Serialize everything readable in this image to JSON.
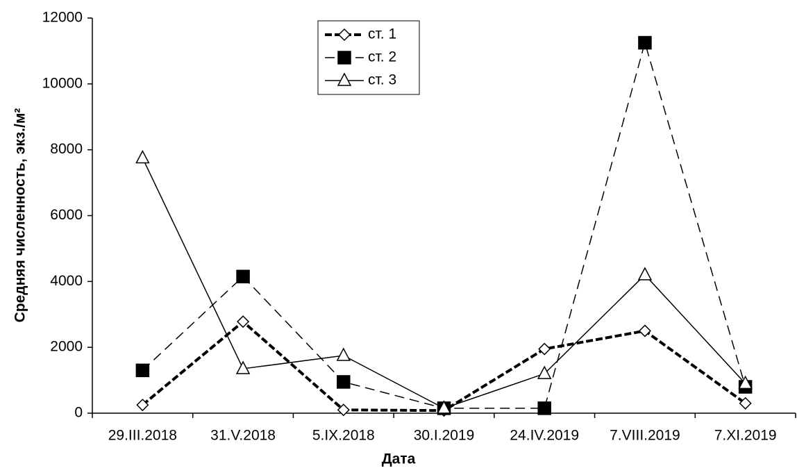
{
  "chart_data": {
    "type": "line",
    "x_label": "Дата",
    "y_label": "Средняя численность, экз./м²",
    "categories": [
      "29.III.2018",
      "31.V.2018",
      "5.IX.2018",
      "30.I.2019",
      "24.IV.2019",
      "7.VIII.2019",
      "7.XI.2019"
    ],
    "series": [
      {
        "name": "ст. 1",
        "color": "#000000",
        "dash": "10,4",
        "line_width": 4,
        "marker": "diamond",
        "values": [
          250,
          2780,
          100,
          80,
          1950,
          2500,
          300
        ]
      },
      {
        "name": "ст. 2",
        "color": "#000000",
        "dash": "14,8",
        "line_width": 1.5,
        "marker": "square",
        "values": [
          1300,
          4150,
          950,
          150,
          150,
          11250,
          800
        ]
      },
      {
        "name": "ст. 3",
        "color": "#000000",
        "dash": "none",
        "line_width": 1.5,
        "marker": "triangle",
        "values": [
          7750,
          1350,
          1750,
          150,
          1200,
          4200,
          900
        ]
      }
    ],
    "ylim": [
      0,
      12000
    ],
    "yticks": [
      0,
      2000,
      4000,
      6000,
      8000,
      10000,
      12000
    ],
    "legend": "top-center"
  }
}
